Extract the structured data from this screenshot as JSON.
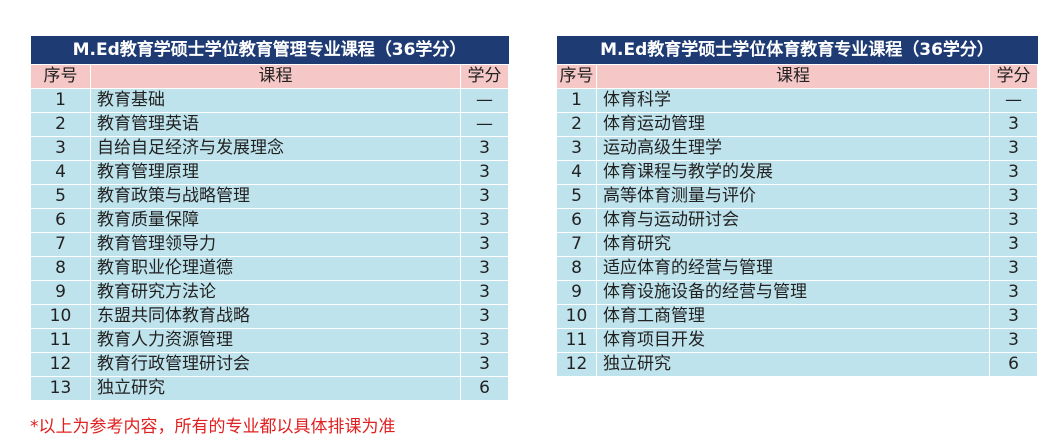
{
  "table_left": {
    "title": "M.Ed教育学硕士学位教育管理专业课程（36学分）",
    "headers": {
      "no": "序号",
      "course": "课程",
      "credits": "学分"
    },
    "rows": [
      {
        "no": "1",
        "course": "教育基础",
        "credits": "—"
      },
      {
        "no": "2",
        "course": "教育管理英语",
        "credits": "—"
      },
      {
        "no": "3",
        "course": "自给自足经济与发展理念",
        "credits": "3"
      },
      {
        "no": "4",
        "course": "教育管理原理",
        "credits": "3"
      },
      {
        "no": "5",
        "course": "教育政策与战略管理",
        "credits": "3"
      },
      {
        "no": "6",
        "course": "教育质量保障",
        "credits": "3"
      },
      {
        "no": "7",
        "course": "教育管理领导力",
        "credits": "3"
      },
      {
        "no": "8",
        "course": "教育职业伦理道德",
        "credits": "3"
      },
      {
        "no": "9",
        "course": "教育研究方法论",
        "credits": "3"
      },
      {
        "no": "10",
        "course": "东盟共同体教育战略",
        "credits": "3"
      },
      {
        "no": "11",
        "course": "教育人力资源管理",
        "credits": "3"
      },
      {
        "no": "12",
        "course": "教育行政管理研讨会",
        "credits": "3"
      },
      {
        "no": "13",
        "course": "独立研究",
        "credits": "6"
      }
    ]
  },
  "table_right": {
    "title": "M.Ed教育学硕士学位体育教育专业课程（36学分）",
    "headers": {
      "no": "序号",
      "course": "课程",
      "credits": "学分"
    },
    "rows": [
      {
        "no": "1",
        "course": "体育科学",
        "credits": "—"
      },
      {
        "no": "2",
        "course": "体育运动管理",
        "credits": "3"
      },
      {
        "no": "3",
        "course": "运动高级生理学",
        "credits": "3"
      },
      {
        "no": "4",
        "course": "体育课程与教学的发展",
        "credits": "3"
      },
      {
        "no": "5",
        "course": "高等体育测量与评价",
        "credits": "3"
      },
      {
        "no": "6",
        "course": "体育与运动研讨会",
        "credits": "3"
      },
      {
        "no": "7",
        "course": "体育研究",
        "credits": "3"
      },
      {
        "no": "8",
        "course": "适应体育的经营与管理",
        "credits": "3"
      },
      {
        "no": "9",
        "course": "体育设施设备的经营与管理",
        "credits": "3"
      },
      {
        "no": "10",
        "course": "体育工商管理",
        "credits": "3"
      },
      {
        "no": "11",
        "course": "体育项目开发",
        "credits": "3"
      },
      {
        "no": "12",
        "course": "独立研究",
        "credits": "6"
      }
    ]
  },
  "note": "*以上为参考内容，所有的专业都以具体排课为准",
  "colors": {
    "title_bg": "#1f3b73",
    "header_bg": "#f5c7c7",
    "row_bg": "#bfe3ec",
    "note": "#e02020"
  }
}
